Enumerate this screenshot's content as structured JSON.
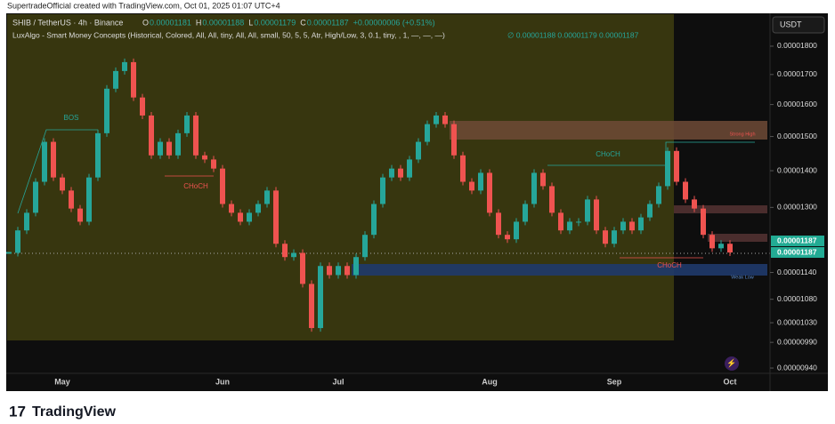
{
  "header": {
    "credit": "SupertradeOfficial created with TradingView.com, Oct 01, 2025 01:07 UTC+4",
    "logo": "TradingView"
  },
  "chart_data": {
    "type": "candlestick",
    "symbol": "SHIB / TetherUS · 4h · Binance",
    "ohlc_labels": [
      "O",
      "0.00001181",
      "H",
      "0.00001188",
      "L",
      "0.00001179",
      "C",
      "0.00001187",
      "+0.00000006 (+0.51%)"
    ],
    "indicator": "LuxAlgo - Smart Money Concepts (Historical, Colored, All, All, tiny, All, All, small, 50, 5, 5, Atr, High/Low, 3, 0.1, tiny, , 1, —, —, —)",
    "indicator_values": "∅  0.00001188  0.00001179  0.00001187",
    "currency": "USDT",
    "annotations": [
      "BOS",
      "CHoCH",
      "CHoCH",
      "CHoCH",
      "Strong High",
      "Weak Low"
    ],
    "categories": [
      null,
      null,
      null,
      null,
      null,
      null,
      "May",
      null,
      null,
      null,
      null,
      null,
      null,
      null,
      null,
      null,
      null,
      null,
      null,
      null,
      null,
      null,
      null,
      null,
      "Jun",
      null,
      null,
      null,
      null,
      null,
      null,
      null,
      null,
      null,
      null,
      null,
      null,
      "Jul",
      null,
      null,
      null,
      null,
      null,
      null,
      null,
      null,
      null,
      null,
      null,
      null,
      null,
      null,
      null,
      null,
      "Aug",
      null,
      null,
      null,
      null,
      null,
      null,
      null,
      null,
      null,
      null,
      null,
      null,
      null,
      "Sep",
      null,
      null,
      null,
      null,
      null,
      null,
      null,
      null,
      null,
      null,
      null,
      null,
      "Oct"
    ],
    "series": [
      {
        "name": "SHIB/USDT",
        "up_color": "#26a69a",
        "down_color": "#ef5350",
        "values": [
          1.186e-05,
          1.241e-05,
          1.286e-05,
          1.369e-05,
          1.484e-05,
          1.381e-05,
          1.345e-05,
          1.297e-05,
          1.263e-05,
          1.381e-05,
          1.51e-05,
          1.652e-05,
          1.712e-05,
          1.743e-05,
          1.623e-05,
          1.565e-05,
          1.444e-05,
          1.484e-05,
          1.444e-05,
          1.51e-05,
          1.565e-05,
          1.444e-05,
          1.432e-05,
          1.406e-05,
          1.309e-05,
          1.286e-05,
          1.263e-05,
          1.286e-05,
          1.309e-05,
          1.345e-05,
          1.208e-05,
          1.176e-05,
          1.186e-05,
          1.114e-05,
          1.019e-05,
          1.155e-05,
          1.134e-05,
          1.155e-05,
          1.134e-05,
          1.176e-05,
          1.23e-05,
          1.309e-05,
          1.381e-05,
          1.406e-05,
          1.381e-05,
          1.432e-05,
          1.484e-05,
          1.538e-05,
          1.565e-05,
          1.538e-05,
          1.444e-05,
          1.369e-05,
          1.345e-05,
          1.394e-05,
          1.286e-05,
          1.23e-05,
          1.219e-05,
          1.263e-05,
          1.309e-05,
          1.394e-05,
          1.357e-05,
          1.286e-05,
          1.241e-05,
          1.263e-05,
          1.263e-05,
          1.321e-05,
          1.241e-05,
          1.208e-05,
          1.241e-05,
          1.263e-05,
          1.241e-05,
          1.274e-05,
          1.309e-05,
          1.357e-05,
          1.457e-05,
          1.369e-05,
          1.321e-05,
          1.297e-05,
          1.23e-05,
          1.197e-05,
          1.208e-05,
          1.187e-05
        ]
      }
    ],
    "ylim": [
      9.3e-06,
      1.92e-05
    ],
    "log_scale": true,
    "grid": false,
    "yticks": [
      {
        "value": 1.8e-05,
        "label": "0.00001800"
      },
      {
        "value": 1.7e-05,
        "label": "0.00001700"
      },
      {
        "value": 1.6e-05,
        "label": "0.00001600"
      },
      {
        "value": 1.5e-05,
        "label": "0.00001500"
      },
      {
        "value": 1.4e-05,
        "label": "0.00001400"
      },
      {
        "value": 1.3e-05,
        "label": "0.00001300"
      },
      {
        "value": 1.14e-05,
        "label": "0.00001140"
      },
      {
        "value": 1.08e-05,
        "label": "0.00001080"
      },
      {
        "value": 1.03e-05,
        "label": "0.00001030"
      },
      {
        "value": 9.9e-06,
        "label": "0.00000990"
      },
      {
        "value": 9.4e-06,
        "label": "0.00000940"
      }
    ],
    "last_price_labels": [
      {
        "value": 1.187e-05,
        "label": "0.00001187"
      },
      {
        "value": 1.187e-05,
        "label": "0.00001187"
      }
    ]
  }
}
